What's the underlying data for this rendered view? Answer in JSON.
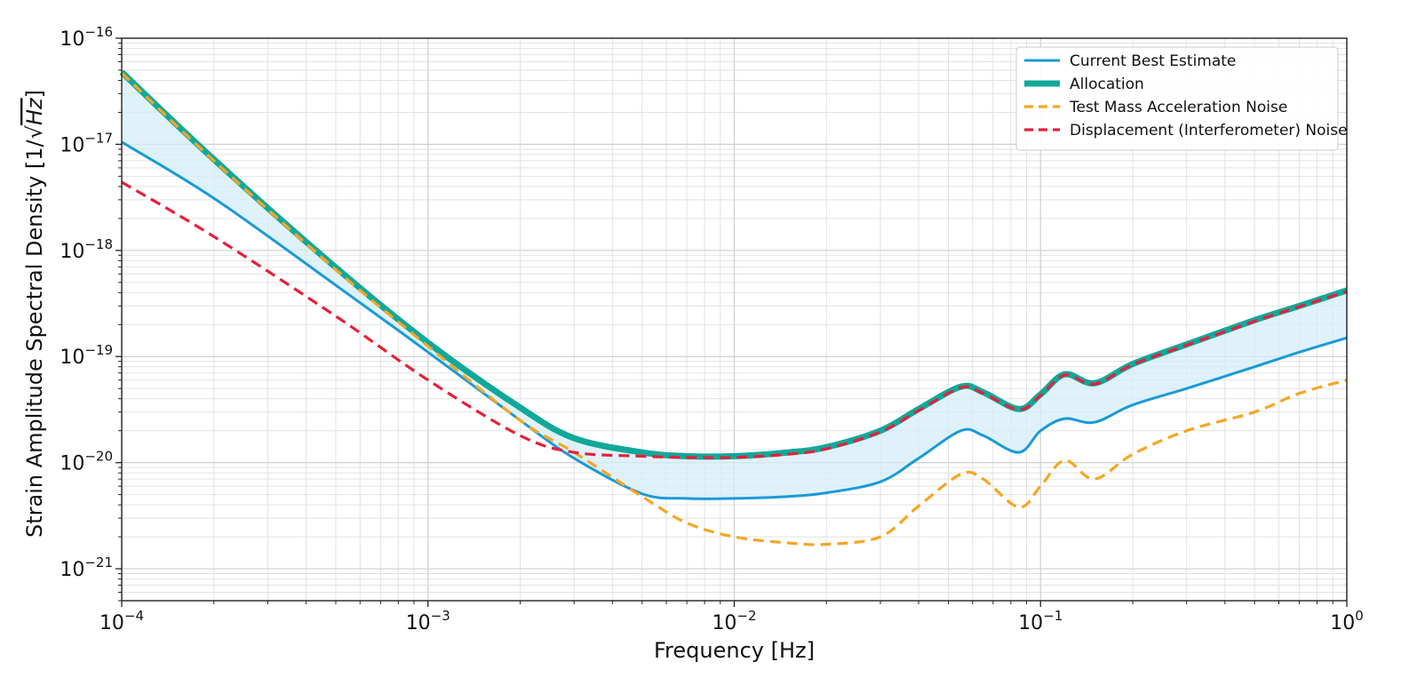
{
  "chart_data": {
    "type": "line",
    "xlabel": "Frequency [Hz]",
    "ylabel_main": "Strain Amplitude Spectral Density [1/",
    "ylabel_sqrt": "Hz",
    "ylabel_close": "]",
    "xscale": "log",
    "yscale": "log",
    "xlim": [
      0.0001,
      1
    ],
    "ylim": [
      5e-22,
      1e-16
    ],
    "grid": true,
    "legend_placement": "top-right",
    "x_ticks": [
      {
        "value": 0.0001,
        "base": "10",
        "exp": "−4"
      },
      {
        "value": 0.001,
        "base": "10",
        "exp": "−3"
      },
      {
        "value": 0.01,
        "base": "10",
        "exp": "−2"
      },
      {
        "value": 0.1,
        "base": "10",
        "exp": "−1"
      },
      {
        "value": 1,
        "base": "10",
        "exp": "0"
      }
    ],
    "y_ticks": [
      {
        "value": 1e-16,
        "base": "10",
        "exp": "−16"
      },
      {
        "value": 1e-17,
        "base": "10",
        "exp": "−17"
      },
      {
        "value": 1e-18,
        "base": "10",
        "exp": "−18"
      },
      {
        "value": 1e-19,
        "base": "10",
        "exp": "−19"
      },
      {
        "value": 1e-20,
        "base": "10",
        "exp": "−20"
      },
      {
        "value": 1e-21,
        "base": "10",
        "exp": "−21"
      }
    ],
    "series": [
      {
        "name": "Current Best Estimate",
        "color": "#1a9ad6",
        "style": "solid",
        "x": [
          0.0001,
          0.0002,
          0.0005,
          0.001,
          0.002,
          0.003,
          0.005,
          0.007,
          0.01,
          0.015,
          0.02,
          0.03,
          0.04,
          0.055,
          0.065,
          0.085,
          0.1,
          0.12,
          0.15,
          0.2,
          0.3,
          0.5,
          0.7,
          1.0
        ],
        "y": [
          1.05e-17,
          3.1e-18,
          4.7e-19,
          1.1e-19,
          2.5e-20,
          1.1e-20,
          5.1e-21,
          4.6e-21,
          4.6e-21,
          4.8e-21,
          5.2e-21,
          6.6e-21,
          1.1e-20,
          2e-20,
          1.8e-20,
          1.25e-20,
          2e-20,
          2.6e-20,
          2.4e-20,
          3.5e-20,
          5e-20,
          8e-20,
          1.1e-19,
          1.5e-19
        ]
      },
      {
        "name": "Allocation",
        "color": "#11a89a",
        "style": "thick",
        "x": [
          0.0001,
          0.0002,
          0.0005,
          0.001,
          0.002,
          0.003,
          0.005,
          0.007,
          0.01,
          0.015,
          0.02,
          0.03,
          0.04,
          0.055,
          0.065,
          0.085,
          0.1,
          0.12,
          0.15,
          0.2,
          0.3,
          0.5,
          0.7,
          1.0
        ],
        "y": [
          4.8e-17,
          7.2e-18,
          6.9e-19,
          1.35e-19,
          3.3e-20,
          1.7e-20,
          1.25e-20,
          1.15e-20,
          1.15e-20,
          1.25e-20,
          1.4e-20,
          2e-20,
          3.2e-20,
          5.2e-20,
          4.6e-20,
          3.2e-20,
          4.4e-20,
          6.8e-20,
          5.6e-20,
          8.5e-20,
          1.3e-19,
          2.2e-19,
          3e-19,
          4.2e-19
        ]
      },
      {
        "name": "Test Mass Acceleration Noise",
        "color": "#f5a623",
        "style": "dashed",
        "x": [
          0.0001,
          0.0002,
          0.0005,
          0.001,
          0.002,
          0.003,
          0.005,
          0.007,
          0.01,
          0.015,
          0.02,
          0.03,
          0.04,
          0.055,
          0.065,
          0.085,
          0.1,
          0.12,
          0.15,
          0.2,
          0.3,
          0.5,
          0.7,
          1.0
        ],
        "y": [
          4.7e-17,
          7e-18,
          6.6e-19,
          1.25e-19,
          2.5e-20,
          1.25e-20,
          4.8e-21,
          2.7e-21,
          2e-21,
          1.75e-21,
          1.7e-21,
          2e-21,
          3.9e-21,
          7.8e-21,
          7e-21,
          3.8e-21,
          6e-21,
          1.05e-20,
          7e-21,
          1.2e-20,
          2e-20,
          3e-20,
          4.5e-20,
          6e-20
        ]
      },
      {
        "name": "Displacement (Interferometer) Noise",
        "color": "#e5203a",
        "style": "dashed",
        "x": [
          0.0001,
          0.0002,
          0.0005,
          0.001,
          0.002,
          0.003,
          0.005,
          0.007,
          0.01,
          0.015,
          0.02,
          0.03,
          0.04,
          0.055,
          0.065,
          0.085,
          0.1,
          0.12,
          0.15,
          0.2,
          0.3,
          0.5,
          0.7,
          1.0
        ],
        "y": [
          4.4e-18,
          1.35e-18,
          2.4e-19,
          6e-20,
          1.8e-20,
          1.25e-20,
          1.15e-20,
          1.12e-20,
          1.12e-20,
          1.2e-20,
          1.35e-20,
          1.95e-20,
          3.1e-20,
          5.1e-20,
          4.5e-20,
          3.15e-20,
          4.3e-20,
          6.7e-20,
          5.5e-20,
          8.4e-20,
          1.28e-19,
          2.15e-19,
          2.95e-19,
          4.1e-19
        ]
      }
    ],
    "band": {
      "between": [
        "Current Best Estimate",
        "Allocation"
      ],
      "color": "#d4eef8"
    }
  }
}
